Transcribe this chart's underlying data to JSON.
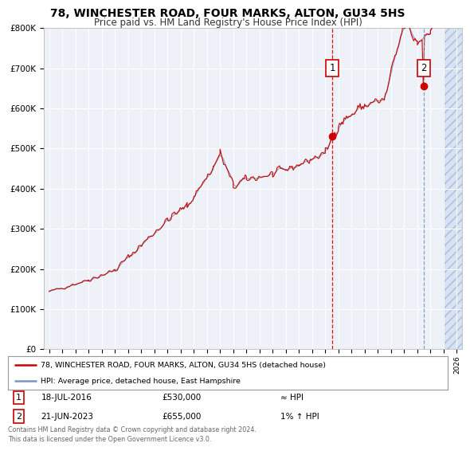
{
  "title": "78, WINCHESTER ROAD, FOUR MARKS, ALTON, GU34 5HS",
  "subtitle": "Price paid vs. HM Land Registry's House Price Index (HPI)",
  "legend_line1": "78, WINCHESTER ROAD, FOUR MARKS, ALTON, GU34 5HS (detached house)",
  "legend_line2": "HPI: Average price, detached house, East Hampshire",
  "annotation1_label": "1",
  "annotation1_date": "18-JUL-2016",
  "annotation1_price": "£530,000",
  "annotation1_hpi": "≈ HPI",
  "annotation2_label": "2",
  "annotation2_date": "21-JUN-2023",
  "annotation2_price": "£655,000",
  "annotation2_hpi": "1% ↑ HPI",
  "footer": "Contains HM Land Registry data © Crown copyright and database right 2024.\nThis data is licensed under the Open Government Licence v3.0.",
  "line_color": "#cc0000",
  "hpi_line_color": "#7799bb",
  "sale1_x": 2016.54,
  "sale1_y": 530000,
  "sale2_x": 2023.47,
  "sale2_y": 655000,
  "ylim": [
    0,
    800000
  ],
  "xlim": [
    1994.6,
    2026.4
  ],
  "background_color": "#ffffff",
  "plot_bg_color": "#eef2f8",
  "hatch_start": 2025.0,
  "grid_color": "#ffffff"
}
